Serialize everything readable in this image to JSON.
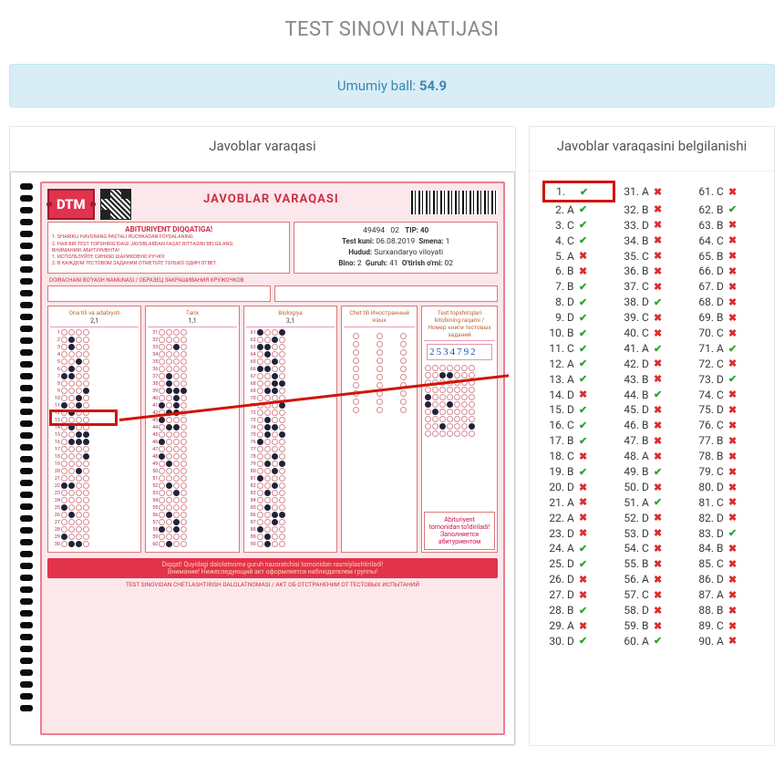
{
  "title": "TEST SINOVI NATIJASI",
  "score_label": "Umumiy ball:",
  "score_value": "54.9",
  "left_header": "Javoblar varaqasi",
  "right_header": "Javoblar varaqasini belgilanishi",
  "sheet": {
    "dtm": "DTM",
    "title": "JAVOBLAR VARAQASI",
    "attention_title": "ABITURIYENT DIQQATIGA!",
    "attention_lines": [
      "1. SHARIKLI HAVORANG PASTALI RUCHKADAN FOYDALANING.",
      "2. HAR BIR TEST TOPSHIRIG'IDAGI JAVOBLARDAN FAQAT BITTASINI BELGILANG.",
      "ВНИМАНИЮ АБИТУРИЕНТА!",
      "1. ИСПОЛЬЗУЙТЕ СИНЮЮ ШАРИКОВУЮ РУЧКУ.",
      "2. В КАЖДОМ ТЕСТОВОМ ЗАДАНИИ ОТМЕТЬТЕ ТОЛЬКО ОДИН ОТВЕТ."
    ],
    "doira_line": "DOIRACHANI BO'YASH NAMUNASI / ОБРАЗЕЦ ЗАКРАШИВАНИЯ КРУЖОЧКОВ",
    "id1": "49494",
    "id2": "02",
    "tip_label": "TIP:",
    "tip": "40",
    "test_kuni_label": "Test kuni:",
    "test_kuni": "06.08.2019",
    "smena_label": "Smena:",
    "smena": "1",
    "hudud_label": "Hudud:",
    "hudud": "Surxandaryo viloyati",
    "bino_label": "Bino:",
    "bino": "2",
    "guruh_label": "Guruh:",
    "guruh": "41",
    "orin_label": "O'tirish o'rni:",
    "orin": "02",
    "subj1": "Ona tili va adabiyoti",
    "subj1n": "2,1",
    "subj2": "Tarix",
    "subj2n": "1,1",
    "subj3": "Biologiya",
    "subj3n": "3,1",
    "subj4": "Chet tili\nИностранный язык",
    "subj5": "Test topshiriqlari\nkitobining raqami / Номер\nкниги тестовых заданий",
    "book_number": "2534792",
    "fill_note": "Abituriyent tomonidan to'ldiriladi!\nЗаполняется абитуриентом",
    "footer1": "Diqqat! Quyidagi dalolatnoma guruh nazoratchisi tomonidan rasmiylashtiriladi!\nВнимание! Нижеследующий акт оформляется наблюдателем группы!",
    "footer2": "TEST SINOVIDAN CHETLASHTIRISH DALOLATNOMASI / АКТ ОБ ОТСТРАНЕНИИ ОТ ТЕСТОВЫХ ИСПЫТАНИЙ"
  },
  "answers": [
    {
      "n": 1,
      "l": "",
      "ok": true
    },
    {
      "n": 2,
      "l": "A",
      "ok": true
    },
    {
      "n": 3,
      "l": "C",
      "ok": true
    },
    {
      "n": 4,
      "l": "C",
      "ok": true
    },
    {
      "n": 5,
      "l": "A",
      "ok": false
    },
    {
      "n": 6,
      "l": "B",
      "ok": false
    },
    {
      "n": 7,
      "l": "B",
      "ok": true
    },
    {
      "n": 8,
      "l": "D",
      "ok": true
    },
    {
      "n": 9,
      "l": "D",
      "ok": true
    },
    {
      "n": 10,
      "l": "B",
      "ok": true
    },
    {
      "n": 11,
      "l": "C",
      "ok": true
    },
    {
      "n": 12,
      "l": "A",
      "ok": true
    },
    {
      "n": 13,
      "l": "A",
      "ok": true
    },
    {
      "n": 14,
      "l": "D",
      "ok": false
    },
    {
      "n": 15,
      "l": "D",
      "ok": true
    },
    {
      "n": 16,
      "l": "C",
      "ok": true
    },
    {
      "n": 17,
      "l": "B",
      "ok": true
    },
    {
      "n": 18,
      "l": "C",
      "ok": false
    },
    {
      "n": 19,
      "l": "B",
      "ok": true
    },
    {
      "n": 20,
      "l": "D",
      "ok": false
    },
    {
      "n": 21,
      "l": "A",
      "ok": false
    },
    {
      "n": 22,
      "l": "A",
      "ok": false
    },
    {
      "n": 23,
      "l": "D",
      "ok": false
    },
    {
      "n": 24,
      "l": "A",
      "ok": true
    },
    {
      "n": 25,
      "l": "D",
      "ok": true
    },
    {
      "n": 26,
      "l": "D",
      "ok": false
    },
    {
      "n": 27,
      "l": "D",
      "ok": false
    },
    {
      "n": 28,
      "l": "B",
      "ok": true
    },
    {
      "n": 29,
      "l": "A",
      "ok": false
    },
    {
      "n": 30,
      "l": "D",
      "ok": true
    },
    {
      "n": 31,
      "l": "A",
      "ok": false
    },
    {
      "n": 32,
      "l": "B",
      "ok": false
    },
    {
      "n": 33,
      "l": "D",
      "ok": false
    },
    {
      "n": 34,
      "l": "B",
      "ok": false
    },
    {
      "n": 35,
      "l": "C",
      "ok": false
    },
    {
      "n": 36,
      "l": "B",
      "ok": false
    },
    {
      "n": 37,
      "l": "C",
      "ok": false
    },
    {
      "n": 38,
      "l": "D",
      "ok": true
    },
    {
      "n": 39,
      "l": "C",
      "ok": false
    },
    {
      "n": 40,
      "l": "C",
      "ok": false
    },
    {
      "n": 41,
      "l": "A",
      "ok": true
    },
    {
      "n": 42,
      "l": "D",
      "ok": false
    },
    {
      "n": 43,
      "l": "B",
      "ok": false
    },
    {
      "n": 44,
      "l": "B",
      "ok": true
    },
    {
      "n": 45,
      "l": "D",
      "ok": false
    },
    {
      "n": 46,
      "l": "B",
      "ok": false
    },
    {
      "n": 47,
      "l": "B",
      "ok": false
    },
    {
      "n": 48,
      "l": "A",
      "ok": false
    },
    {
      "n": 49,
      "l": "B",
      "ok": true
    },
    {
      "n": 50,
      "l": "D",
      "ok": false
    },
    {
      "n": 51,
      "l": "A",
      "ok": true
    },
    {
      "n": 52,
      "l": "D",
      "ok": false
    },
    {
      "n": 53,
      "l": "D",
      "ok": false
    },
    {
      "n": 54,
      "l": "C",
      "ok": false
    },
    {
      "n": 55,
      "l": "B",
      "ok": false
    },
    {
      "n": 56,
      "l": "A",
      "ok": false
    },
    {
      "n": 57,
      "l": "C",
      "ok": false
    },
    {
      "n": 58,
      "l": "D",
      "ok": false
    },
    {
      "n": 59,
      "l": "B",
      "ok": false
    },
    {
      "n": 60,
      "l": "A",
      "ok": true
    },
    {
      "n": 61,
      "l": "C",
      "ok": false
    },
    {
      "n": 62,
      "l": "B",
      "ok": true
    },
    {
      "n": 63,
      "l": "B",
      "ok": false
    },
    {
      "n": 64,
      "l": "C",
      "ok": false
    },
    {
      "n": 65,
      "l": "B",
      "ok": false
    },
    {
      "n": 66,
      "l": "D",
      "ok": false
    },
    {
      "n": 67,
      "l": "D",
      "ok": false
    },
    {
      "n": 68,
      "l": "D",
      "ok": false
    },
    {
      "n": 69,
      "l": "B",
      "ok": false
    },
    {
      "n": 70,
      "l": "C",
      "ok": false
    },
    {
      "n": 71,
      "l": "A",
      "ok": true
    },
    {
      "n": 72,
      "l": "C",
      "ok": false
    },
    {
      "n": 73,
      "l": "D",
      "ok": true
    },
    {
      "n": 74,
      "l": "C",
      "ok": false
    },
    {
      "n": 75,
      "l": "D",
      "ok": false
    },
    {
      "n": 76,
      "l": "C",
      "ok": false
    },
    {
      "n": 77,
      "l": "B",
      "ok": false
    },
    {
      "n": 78,
      "l": "B",
      "ok": false
    },
    {
      "n": 79,
      "l": "C",
      "ok": false
    },
    {
      "n": 80,
      "l": "D",
      "ok": false
    },
    {
      "n": 81,
      "l": "C",
      "ok": false
    },
    {
      "n": 82,
      "l": "D",
      "ok": false
    },
    {
      "n": 83,
      "l": "D",
      "ok": true
    },
    {
      "n": 84,
      "l": "B",
      "ok": false
    },
    {
      "n": 85,
      "l": "C",
      "ok": false
    },
    {
      "n": 86,
      "l": "D",
      "ok": false
    },
    {
      "n": 87,
      "l": "A",
      "ok": false
    },
    {
      "n": 88,
      "l": "B",
      "ok": false
    },
    {
      "n": 89,
      "l": "C",
      "ok": false
    },
    {
      "n": 90,
      "l": "A",
      "ok": false
    }
  ],
  "colors": {
    "score_bg": "#d9edf7",
    "score_border": "#bce8f1",
    "score_text": "#3a87ad",
    "ok": "#29a428",
    "no": "#dc2d2d",
    "callout": "#d11404",
    "sheet_bg": "#fce7ea",
    "sheet_border": "#e98090"
  }
}
